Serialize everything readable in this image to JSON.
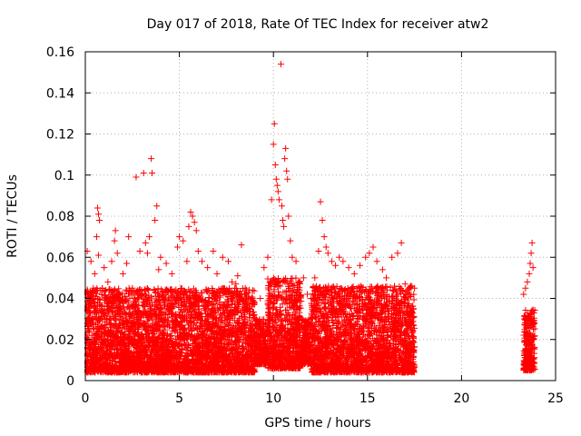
{
  "chart_data": {
    "type": "scatter",
    "title": "Day 017 of 2018, Rate Of TEC Index for receiver atw2",
    "xlabel": "GPS time / hours",
    "ylabel": "ROTI / TECUs",
    "xlim": [
      0,
      25
    ],
    "ylim": [
      0,
      0.16
    ],
    "x_ticks": [
      0,
      5,
      10,
      15,
      20,
      25
    ],
    "y_ticks": [
      0,
      0.02,
      0.04,
      0.06,
      0.08,
      0.1,
      0.12,
      0.14,
      0.16
    ],
    "x_tick_labels": [
      "0",
      "5",
      "10",
      "15",
      "20",
      "25"
    ],
    "y_tick_labels": [
      "0",
      "0.02",
      "0.04",
      "0.06",
      "0.08",
      "0.1",
      "0.12",
      "0.14",
      "0.16"
    ],
    "grid": true,
    "marker": "plus",
    "marker_color": "#ff0000",
    "series": [
      {
        "name": "ROTI",
        "points": [
          [
            0.1,
            0.063
          ],
          [
            0.3,
            0.058
          ],
          [
            0.5,
            0.052
          ],
          [
            0.7,
            0.061
          ],
          [
            0.9,
            0.045
          ],
          [
            0.6,
            0.07
          ],
          [
            0.65,
            0.084
          ],
          [
            0.7,
            0.081
          ],
          [
            0.75,
            0.078
          ],
          [
            1.0,
            0.055
          ],
          [
            1.2,
            0.048
          ],
          [
            1.4,
            0.058
          ],
          [
            1.55,
            0.068
          ],
          [
            1.6,
            0.073
          ],
          [
            1.7,
            0.062
          ],
          [
            2.0,
            0.052
          ],
          [
            2.2,
            0.057
          ],
          [
            2.3,
            0.07
          ],
          [
            2.5,
            0.045
          ],
          [
            2.7,
            0.099
          ],
          [
            2.9,
            0.063
          ],
          [
            3.1,
            0.101
          ],
          [
            3.2,
            0.067
          ],
          [
            3.3,
            0.062
          ],
          [
            3.4,
            0.07
          ],
          [
            3.5,
            0.108
          ],
          [
            3.55,
            0.101
          ],
          [
            3.7,
            0.078
          ],
          [
            3.8,
            0.085
          ],
          [
            3.9,
            0.054
          ],
          [
            4.0,
            0.06
          ],
          [
            4.3,
            0.057
          ],
          [
            4.6,
            0.052
          ],
          [
            4.9,
            0.065
          ],
          [
            5.0,
            0.07
          ],
          [
            5.2,
            0.068
          ],
          [
            5.4,
            0.058
          ],
          [
            5.5,
            0.075
          ],
          [
            5.6,
            0.082
          ],
          [
            5.7,
            0.08
          ],
          [
            5.8,
            0.077
          ],
          [
            5.9,
            0.073
          ],
          [
            6.0,
            0.063
          ],
          [
            6.2,
            0.058
          ],
          [
            6.5,
            0.055
          ],
          [
            6.8,
            0.063
          ],
          [
            7.0,
            0.052
          ],
          [
            7.3,
            0.06
          ],
          [
            7.6,
            0.058
          ],
          [
            7.8,
            0.048
          ],
          [
            8.0,
            0.047
          ],
          [
            8.1,
            0.051
          ],
          [
            8.3,
            0.066
          ],
          [
            8.5,
            0.045
          ],
          [
            8.7,
            0.035
          ],
          [
            9.0,
            0.03
          ],
          [
            9.3,
            0.04
          ],
          [
            9.5,
            0.055
          ],
          [
            9.7,
            0.06
          ],
          [
            9.9,
            0.088
          ],
          [
            10.0,
            0.115
          ],
          [
            10.05,
            0.125
          ],
          [
            10.1,
            0.105
          ],
          [
            10.15,
            0.098
          ],
          [
            10.2,
            0.095
          ],
          [
            10.25,
            0.092
          ],
          [
            10.3,
            0.088
          ],
          [
            10.4,
            0.154
          ],
          [
            10.45,
            0.085
          ],
          [
            10.5,
            0.078
          ],
          [
            10.55,
            0.075
          ],
          [
            10.6,
            0.108
          ],
          [
            10.65,
            0.113
          ],
          [
            10.7,
            0.102
          ],
          [
            10.75,
            0.098
          ],
          [
            10.8,
            0.08
          ],
          [
            10.9,
            0.068
          ],
          [
            11.0,
            0.06
          ],
          [
            11.2,
            0.058
          ],
          [
            11.4,
            0.048
          ],
          [
            11.6,
            0.05
          ],
          [
            11.8,
            0.042
          ],
          [
            12.0,
            0.04
          ],
          [
            12.2,
            0.05
          ],
          [
            12.4,
            0.063
          ],
          [
            12.5,
            0.087
          ],
          [
            12.6,
            0.078
          ],
          [
            12.7,
            0.07
          ],
          [
            12.8,
            0.065
          ],
          [
            12.9,
            0.062
          ],
          [
            13.1,
            0.058
          ],
          [
            13.3,
            0.056
          ],
          [
            13.5,
            0.06
          ],
          [
            13.7,
            0.058
          ],
          [
            14.0,
            0.055
          ],
          [
            14.3,
            0.052
          ],
          [
            14.6,
            0.056
          ],
          [
            14.9,
            0.06
          ],
          [
            15.1,
            0.062
          ],
          [
            15.3,
            0.065
          ],
          [
            15.5,
            0.058
          ],
          [
            15.8,
            0.054
          ],
          [
            16.0,
            0.05
          ],
          [
            16.3,
            0.06
          ],
          [
            16.6,
            0.062
          ],
          [
            16.8,
            0.067
          ],
          [
            17.0,
            0.047
          ],
          [
            17.3,
            0.046
          ],
          [
            17.5,
            0.045
          ],
          [
            23.3,
            0.042
          ],
          [
            23.4,
            0.045
          ],
          [
            23.5,
            0.048
          ],
          [
            23.6,
            0.052
          ],
          [
            23.65,
            0.057
          ],
          [
            23.7,
            0.062
          ],
          [
            23.75,
            0.067
          ],
          [
            23.8,
            0.055
          ]
        ],
        "band": {
          "segments": [
            {
              "x": [
                0.0,
                9.0
              ],
              "low": 0.004,
              "high": 0.045
            },
            {
              "x": [
                9.0,
                9.7
              ],
              "low": 0.008,
              "high": 0.03
            },
            {
              "x": [
                9.7,
                11.5
              ],
              "low": 0.006,
              "high": 0.05
            },
            {
              "x": [
                11.5,
                12.0
              ],
              "low": 0.008,
              "high": 0.03
            },
            {
              "x": [
                12.0,
                17.5
              ],
              "low": 0.004,
              "high": 0.046
            },
            {
              "x": [
                23.3,
                23.9
              ],
              "low": 0.005,
              "high": 0.035
            }
          ]
        }
      }
    ]
  }
}
